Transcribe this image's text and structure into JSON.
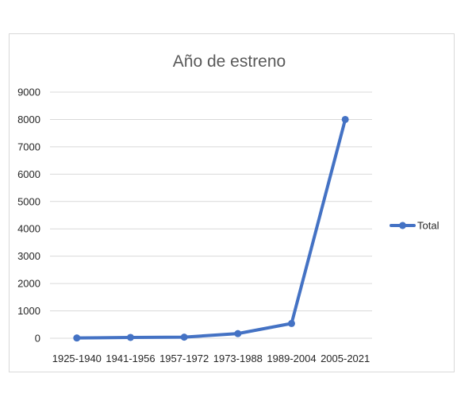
{
  "chart_data": {
    "type": "line",
    "title": "Año de estreno",
    "xlabel": "",
    "ylabel": "",
    "categories": [
      "1925-1940",
      "1941-1956",
      "1957-1972",
      "1973-1988",
      "1989-2004",
      "2005-2021"
    ],
    "series": [
      {
        "name": "Total",
        "values": [
          10,
          30,
          40,
          170,
          540,
          8000
        ],
        "color": "#4472c4"
      }
    ],
    "ylim": [
      0,
      9000
    ],
    "yticks": [
      0,
      1000,
      2000,
      3000,
      4000,
      5000,
      6000,
      7000,
      8000,
      9000
    ],
    "grid": true,
    "legend_position": "right"
  }
}
